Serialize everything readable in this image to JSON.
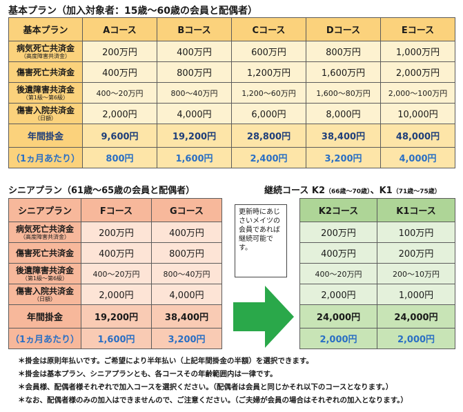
{
  "basic": {
    "title": "基本プラン",
    "subtitle": "（加入対象者：15歳～60歳の会員と配偶者）",
    "header": [
      "基本プラン",
      "Aコース",
      "Bコース",
      "Cコース",
      "Dコース",
      "Eコース"
    ],
    "rows": [
      {
        "label": "病気死亡共済金",
        "sub": "（高度障害共済金）",
        "values": [
          "200万円",
          "400万円",
          "600万円",
          "800万円",
          "1,000万円"
        ]
      },
      {
        "label": "傷害死亡共済金",
        "sub": "",
        "values": [
          "400万円",
          "800万円",
          "1,200万円",
          "1,600万円",
          "2,000万円"
        ]
      },
      {
        "label": "後遺障害共済金",
        "sub": "（第1級～第6級）",
        "values": [
          "400～20万円",
          "800～40万円",
          "1,200～60万円",
          "1,600～80万円",
          "2,000～100万円"
        ]
      },
      {
        "label": "傷害入院共済金",
        "sub": "（日額）",
        "values": [
          "2,000円",
          "4,000円",
          "6,000円",
          "8,000円",
          "10,000円"
        ]
      }
    ],
    "annual": {
      "label": "年間掛金",
      "values": [
        "9,600円",
        "19,200円",
        "28,800円",
        "38,400円",
        "48,000円"
      ]
    },
    "monthly": {
      "label": "（1ヵ月あたり）",
      "values": [
        "800円",
        "1,600円",
        "2,400円",
        "3,200円",
        "4,000円"
      ]
    }
  },
  "senior": {
    "title": "シニアプラン（61歳～65歳の会員と配偶者）",
    "header": [
      "シニアプラン",
      "Fコース",
      "Gコース"
    ],
    "rows": [
      {
        "label": "病気死亡共済金",
        "sub": "（高度障害共済金）",
        "values": [
          "200万円",
          "400万円"
        ]
      },
      {
        "label": "傷害死亡共済金",
        "sub": "",
        "values": [
          "400万円",
          "800万円"
        ]
      },
      {
        "label": "後遺障害共済金",
        "sub": "（第1級～第6級）",
        "values": [
          "400～20万円",
          "800～40万円"
        ]
      },
      {
        "label": "傷害入院共済金",
        "sub": "（日額）",
        "values": [
          "2,000円",
          "4,000円"
        ]
      }
    ],
    "annual": {
      "label": "年間掛金",
      "values": [
        "19,200円",
        "38,400円"
      ]
    },
    "monthly": {
      "label": "（1ヵ月あたり）",
      "values": [
        "1,600円",
        "3,200円"
      ]
    }
  },
  "continuation": {
    "title_main": "継続コース K2",
    "title_k2_range": "（66歳～70歳）",
    "title_sep": "、K1",
    "title_k1_range": "（71歳～75歳）",
    "header": [
      "K2コース",
      "K1コース"
    ],
    "rows": [
      [
        "200万円",
        "100万円"
      ],
      [
        "400万円",
        "200万円"
      ],
      [
        "400～20万円",
        "200～10万円"
      ],
      [
        "2,000円",
        "1,000円"
      ]
    ],
    "annual": [
      "24,000円",
      "24,000円"
    ],
    "monthly": [
      "2,000円",
      "2,000円"
    ]
  },
  "renewal_note": "更新時にあじさいメイツの会員であれば継続可能です。",
  "arrow_color": "#2aa84a",
  "footnotes": [
    "＊掛金は原則年払いです。ご希望により半年払い（上記年間掛金の半額）を選択できます。",
    "＊掛金は基本プラン、シニアプランとも、各コースその年齢範囲内は一律です。",
    "＊会員様、配偶者様それぞれで加入コースを選択ください。（配偶者は会員と同じかそれ以下のコースとなります。）",
    "＊なお、配偶者様のみの加入はできませんので、ご注意ください。（ご夫婦が会員の場合はそれぞれの加入となります。）"
  ]
}
